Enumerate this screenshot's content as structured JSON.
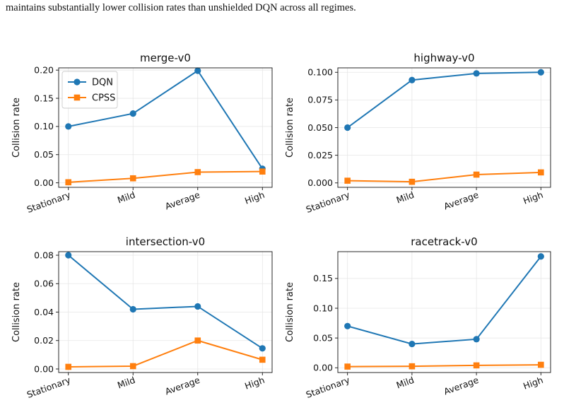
{
  "caption": "maintains substantially lower collision rates than unshielded DQN across all regimes.",
  "colors": {
    "dqn": "#1f77b4",
    "cpss": "#ff7f0e",
    "grid": "#e6e6e6"
  },
  "legend": [
    "DQN",
    "CPSS"
  ],
  "chart_data": [
    {
      "type": "line",
      "title": "merge-v0",
      "categories": [
        "Stationary",
        "Mild",
        "Average",
        "High"
      ],
      "ylabel": "Collision rate",
      "ylim": [
        -0.008,
        0.204
      ],
      "yticks": [
        0.0,
        0.05,
        0.1,
        0.15,
        0.2
      ],
      "ytick_labels": [
        "0.00",
        "0.05",
        "0.10",
        "0.15",
        "0.20"
      ],
      "series": [
        {
          "name": "DQN",
          "marker": "circle",
          "values": [
            0.1,
            0.123,
            0.199,
            0.025
          ]
        },
        {
          "name": "CPSS",
          "marker": "square",
          "values": [
            0.001,
            0.008,
            0.019,
            0.02
          ]
        }
      ],
      "legend_position": "top-left",
      "grid": true
    },
    {
      "type": "line",
      "title": "highway-v0",
      "categories": [
        "Stationary",
        "Mild",
        "Average",
        "High"
      ],
      "ylabel": "Collision rate",
      "ylim": [
        -0.004,
        0.104
      ],
      "yticks": [
        0.0,
        0.025,
        0.05,
        0.075,
        0.1
      ],
      "ytick_labels": [
        "0.000",
        "0.025",
        "0.050",
        "0.075",
        "0.100"
      ],
      "series": [
        {
          "name": "DQN",
          "marker": "circle",
          "values": [
            0.05,
            0.093,
            0.099,
            0.1
          ]
        },
        {
          "name": "CPSS",
          "marker": "square",
          "values": [
            0.002,
            0.001,
            0.0075,
            0.0095
          ]
        }
      ],
      "grid": true
    },
    {
      "type": "line",
      "title": "intersection-v0",
      "categories": [
        "Stationary",
        "Mild",
        "Average",
        "High"
      ],
      "ylabel": "Collision rate",
      "ylim": [
        -0.0025,
        0.0825
      ],
      "yticks": [
        0.0,
        0.02,
        0.04,
        0.06,
        0.08
      ],
      "ytick_labels": [
        "0.00",
        "0.02",
        "0.04",
        "0.06",
        "0.08"
      ],
      "series": [
        {
          "name": "DQN",
          "marker": "circle",
          "values": [
            0.08,
            0.042,
            0.044,
            0.0145
          ]
        },
        {
          "name": "CPSS",
          "marker": "square",
          "values": [
            0.0015,
            0.002,
            0.02,
            0.0065
          ]
        }
      ],
      "grid": true
    },
    {
      "type": "line",
      "title": "racetrack-v0",
      "categories": [
        "Stationary",
        "Mild",
        "Average",
        "High"
      ],
      "ylabel": "Collision rate",
      "ylim": [
        -0.008,
        0.195
      ],
      "yticks": [
        0.0,
        0.05,
        0.1,
        0.15
      ],
      "ytick_labels": [
        "0.00",
        "0.05",
        "0.10",
        "0.15"
      ],
      "series": [
        {
          "name": "DQN",
          "marker": "circle",
          "values": [
            0.07,
            0.04,
            0.048,
            0.187
          ]
        },
        {
          "name": "CPSS",
          "marker": "square",
          "values": [
            0.002,
            0.0025,
            0.004,
            0.005
          ]
        }
      ],
      "grid": true
    }
  ]
}
